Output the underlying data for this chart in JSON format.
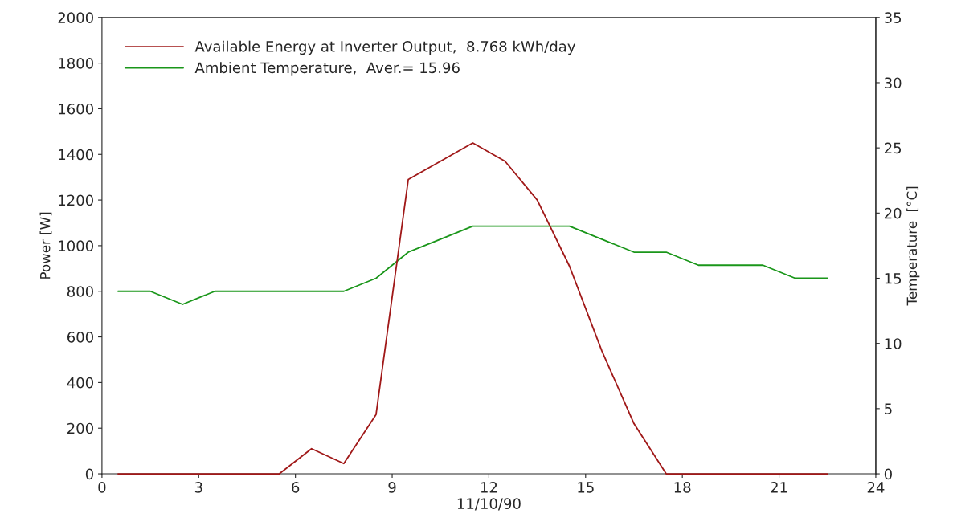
{
  "chart_data": {
    "type": "line",
    "xlabel": "11/10/90",
    "ylabel": "Power [W]",
    "y2label": "Temperature  [°C]",
    "x": [
      0.5,
      1.5,
      2.5,
      3.5,
      4.5,
      5.5,
      6.5,
      7.5,
      8.5,
      9.5,
      10.5,
      11.5,
      12.5,
      13.5,
      14.5,
      15.5,
      16.5,
      17.5,
      18.5,
      19.5,
      20.5,
      21.5,
      22.5
    ],
    "series": [
      {
        "name": "Available Energy at Inverter Output,  8.768 kWh/day",
        "color": "#a01818",
        "values": [
          0,
          0,
          0,
          0,
          0,
          0,
          110,
          45,
          260,
          1290,
          1370,
          1450,
          1370,
          1200,
          910,
          540,
          220,
          0,
          0,
          0,
          0,
          0,
          0
        ]
      },
      {
        "name": "Ambient Temperature,  Aver.= 15.96",
        "color": "#1a961a",
        "axis": "y2",
        "values": [
          14,
          14,
          13,
          14,
          14,
          14,
          14,
          14,
          15,
          17,
          18,
          19,
          19,
          19,
          19,
          18,
          17,
          17,
          16,
          16,
          16,
          15,
          15
        ]
      }
    ],
    "xlim": [
      0,
      24
    ],
    "xticks": [
      0,
      3,
      6,
      9,
      12,
      15,
      18,
      21,
      24
    ],
    "ylim": [
      0,
      2000
    ],
    "yticks": [
      0,
      200,
      400,
      600,
      800,
      1000,
      1200,
      1400,
      1600,
      1800,
      2000
    ],
    "y2lim": [
      0,
      35
    ],
    "y2ticks": [
      0,
      5,
      10,
      15,
      20,
      25,
      30,
      35
    ],
    "legend": "top left",
    "grid": false,
    "line_style": "solid"
  }
}
